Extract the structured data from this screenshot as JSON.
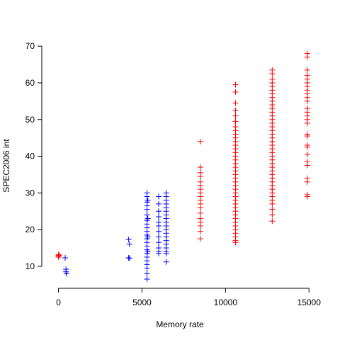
{
  "chart_data": {
    "type": "scatter",
    "xlabel": "Memory rate",
    "ylabel": "SPEC2006 int",
    "xlim": [
      -1000,
      15500
    ],
    "ylim": [
      4,
      71
    ],
    "x_ticks": [
      0,
      5000,
      10000,
      15000
    ],
    "y_ticks": [
      10,
      20,
      30,
      40,
      50,
      60,
      70
    ],
    "grid": false,
    "legend": "none",
    "marker": "plus",
    "series": [
      {
        "color": "#0000ff",
        "points": [
          [
            400,
            12.3
          ],
          [
            450,
            9.2
          ],
          [
            450,
            8.5
          ],
          [
            480,
            8.0
          ],
          [
            4200,
            17.3
          ],
          [
            4250,
            16.0
          ],
          [
            4200,
            12.3
          ],
          [
            4250,
            12.2
          ],
          [
            5300,
            30.0
          ],
          [
            5300,
            29.0
          ],
          [
            5300,
            27.5
          ],
          [
            5300,
            26.5
          ],
          [
            5300,
            25.5
          ],
          [
            5300,
            24.0
          ],
          [
            5300,
            22.5
          ],
          [
            5300,
            21.5
          ],
          [
            5300,
            20.5
          ],
          [
            5300,
            19.5
          ],
          [
            5300,
            18.5
          ],
          [
            5300,
            17.5
          ],
          [
            5300,
            16.5
          ],
          [
            5300,
            15.5
          ],
          [
            5300,
            14.5
          ],
          [
            5300,
            13.5
          ],
          [
            5300,
            12.5
          ],
          [
            5300,
            11.5
          ],
          [
            5300,
            10.5
          ],
          [
            5300,
            9.5
          ],
          [
            5300,
            8.0
          ],
          [
            5300,
            6.5
          ],
          [
            5350,
            28.0
          ],
          [
            5350,
            23.0
          ],
          [
            5350,
            18.0
          ],
          [
            5350,
            14.0
          ],
          [
            6000,
            29.0
          ],
          [
            6000,
            27.0
          ],
          [
            6000,
            25.0
          ],
          [
            6000,
            23.5
          ],
          [
            6000,
            22.0
          ],
          [
            6000,
            21.0
          ],
          [
            6000,
            19.5
          ],
          [
            6000,
            18.0
          ],
          [
            6000,
            16.5
          ],
          [
            6000,
            15.0
          ],
          [
            6000,
            14.0
          ],
          [
            6000,
            13.5
          ],
          [
            6450,
            30.0
          ],
          [
            6450,
            29.0
          ],
          [
            6450,
            28.0
          ],
          [
            6450,
            27.0
          ],
          [
            6450,
            26.0
          ],
          [
            6450,
            25.0
          ],
          [
            6450,
            24.0
          ],
          [
            6450,
            23.0
          ],
          [
            6450,
            22.0
          ],
          [
            6450,
            21.0
          ],
          [
            6450,
            20.0
          ],
          [
            6450,
            19.0
          ],
          [
            6450,
            18.0
          ],
          [
            6450,
            17.0
          ],
          [
            6450,
            16.0
          ],
          [
            6450,
            15.0
          ],
          [
            6450,
            14.0
          ],
          [
            6450,
            13.5
          ],
          [
            6450,
            11.2
          ]
        ]
      },
      {
        "color": "#ff0000",
        "points": [
          [
            0,
            13.2
          ],
          [
            0,
            12.8
          ],
          [
            0,
            12.5
          ],
          [
            30,
            13.0
          ],
          [
            8500,
            44.0
          ],
          [
            8500,
            37.0
          ],
          [
            8500,
            35.5
          ],
          [
            8500,
            34.5
          ],
          [
            8500,
            33.0
          ],
          [
            8500,
            32.0
          ],
          [
            8500,
            31.0
          ],
          [
            8500,
            30.0
          ],
          [
            8500,
            29.0
          ],
          [
            8500,
            28.0
          ],
          [
            8500,
            27.0
          ],
          [
            8500,
            26.0
          ],
          [
            8500,
            24.5
          ],
          [
            8500,
            23.0
          ],
          [
            8500,
            22.0
          ],
          [
            8500,
            21.0
          ],
          [
            8500,
            19.5
          ],
          [
            8500,
            17.5
          ],
          [
            10600,
            59.5
          ],
          [
            10600,
            57.5
          ],
          [
            10600,
            54.5
          ],
          [
            10600,
            52.5
          ],
          [
            10600,
            51.0
          ],
          [
            10600,
            49.5
          ],
          [
            10600,
            48.0
          ],
          [
            10600,
            47.0
          ],
          [
            10600,
            46.0
          ],
          [
            10600,
            45.0
          ],
          [
            10600,
            44.0
          ],
          [
            10600,
            43.0
          ],
          [
            10600,
            42.0
          ],
          [
            10600,
            41.0
          ],
          [
            10600,
            40.0
          ],
          [
            10600,
            39.0
          ],
          [
            10600,
            38.0
          ],
          [
            10600,
            37.0
          ],
          [
            10600,
            36.0
          ],
          [
            10600,
            35.0
          ],
          [
            10600,
            34.0
          ],
          [
            10600,
            33.0
          ],
          [
            10600,
            32.0
          ],
          [
            10600,
            31.0
          ],
          [
            10600,
            30.0
          ],
          [
            10600,
            29.0
          ],
          [
            10600,
            28.0
          ],
          [
            10600,
            27.0
          ],
          [
            10600,
            26.0
          ],
          [
            10600,
            25.0
          ],
          [
            10600,
            24.0
          ],
          [
            10600,
            23.0
          ],
          [
            10600,
            22.0
          ],
          [
            10600,
            21.0
          ],
          [
            10600,
            20.0
          ],
          [
            10600,
            19.0
          ],
          [
            10600,
            18.0
          ],
          [
            10600,
            17.0
          ],
          [
            10600,
            16.5
          ],
          [
            12800,
            63.5
          ],
          [
            12800,
            62.5
          ],
          [
            12800,
            61.0
          ],
          [
            12800,
            60.0
          ],
          [
            12800,
            59.0
          ],
          [
            12800,
            58.0
          ],
          [
            12800,
            57.0
          ],
          [
            12800,
            56.0
          ],
          [
            12800,
            55.0
          ],
          [
            12800,
            54.0
          ],
          [
            12800,
            53.0
          ],
          [
            12800,
            52.0
          ],
          [
            12800,
            51.0
          ],
          [
            12800,
            50.0
          ],
          [
            12800,
            49.0
          ],
          [
            12800,
            48.0
          ],
          [
            12800,
            47.0
          ],
          [
            12800,
            46.0
          ],
          [
            12800,
            45.0
          ],
          [
            12800,
            44.0
          ],
          [
            12800,
            43.0
          ],
          [
            12800,
            42.0
          ],
          [
            12800,
            41.0
          ],
          [
            12800,
            40.0
          ],
          [
            12800,
            39.0
          ],
          [
            12800,
            38.0
          ],
          [
            12800,
            37.0
          ],
          [
            12800,
            36.0
          ],
          [
            12800,
            35.0
          ],
          [
            12800,
            34.0
          ],
          [
            12800,
            33.0
          ],
          [
            12800,
            32.0
          ],
          [
            12800,
            31.0
          ],
          [
            12800,
            30.0
          ],
          [
            12800,
            29.0
          ],
          [
            12800,
            28.0
          ],
          [
            12800,
            27.0
          ],
          [
            12800,
            25.5
          ],
          [
            12800,
            24.0
          ],
          [
            12800,
            22.3
          ],
          [
            14900,
            68.0
          ],
          [
            14900,
            67.0
          ],
          [
            14900,
            63.5
          ],
          [
            14900,
            62.0
          ],
          [
            14900,
            61.0
          ],
          [
            14900,
            60.0
          ],
          [
            14900,
            59.0
          ],
          [
            14900,
            58.0
          ],
          [
            14900,
            57.0
          ],
          [
            14900,
            56.0
          ],
          [
            14900,
            55.0
          ],
          [
            14900,
            53.0
          ],
          [
            14900,
            52.0
          ],
          [
            14900,
            51.0
          ],
          [
            14900,
            50.0
          ],
          [
            14900,
            49.0
          ],
          [
            14900,
            46.0
          ],
          [
            14900,
            45.5
          ],
          [
            14900,
            43.0
          ],
          [
            14900,
            42.5
          ],
          [
            14900,
            40.5
          ],
          [
            14900,
            38.5
          ],
          [
            14900,
            37.5
          ],
          [
            14900,
            34.0
          ],
          [
            14900,
            33.0
          ],
          [
            14900,
            29.5
          ],
          [
            14900,
            29.0
          ]
        ]
      }
    ]
  }
}
